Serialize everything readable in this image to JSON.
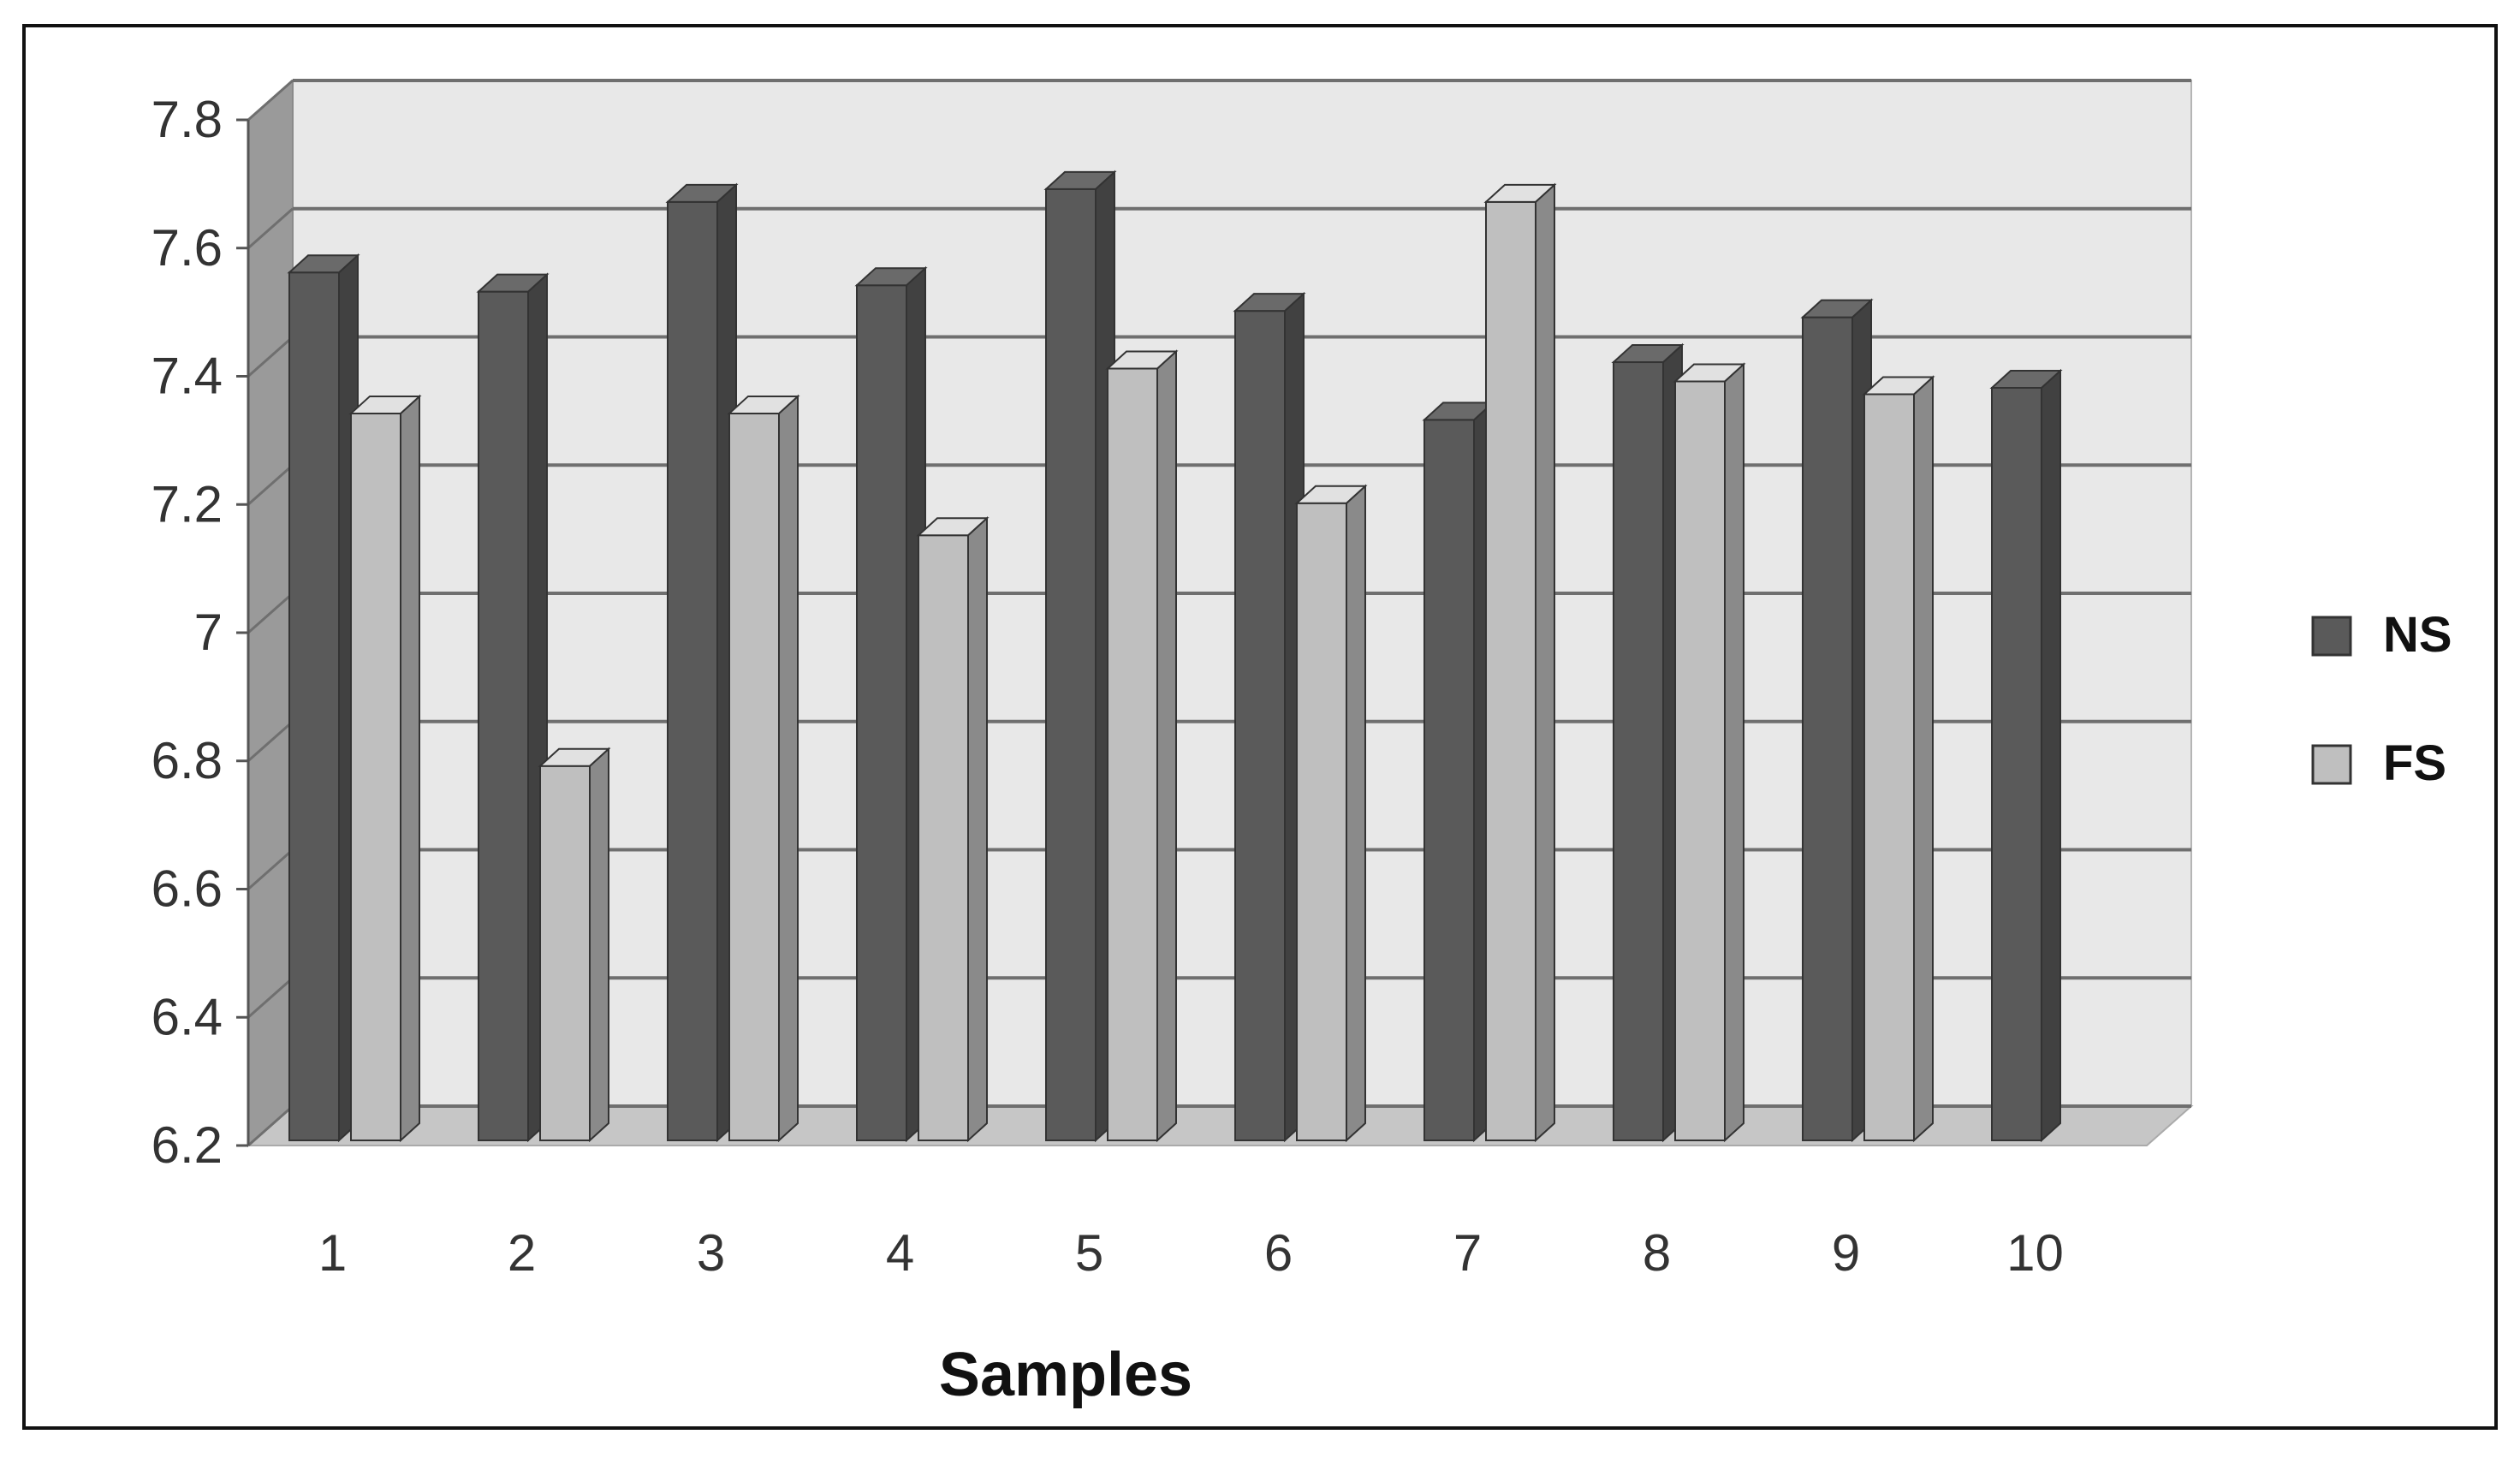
{
  "chart_data": {
    "type": "bar",
    "style": "3d-clustered-column",
    "categories": [
      "1",
      "2",
      "3",
      "4",
      "5",
      "6",
      "7",
      "8",
      "9",
      "10"
    ],
    "series": [
      {
        "name": "NS",
        "color": "#5a5a5a",
        "values": [
          7.57,
          7.54,
          7.68,
          7.55,
          7.7,
          7.51,
          7.34,
          7.43,
          7.5,
          7.39
        ]
      },
      {
        "name": "FS",
        "color": "#bfbfbf",
        "values": [
          7.35,
          6.8,
          7.35,
          7.16,
          7.42,
          7.21,
          7.68,
          7.4,
          7.38,
          null
        ]
      }
    ],
    "title": "",
    "xlabel": "Samples",
    "ylabel": "",
    "ylim": [
      6.2,
      7.8
    ],
    "yticks": [
      "6.2",
      "6.4",
      "6.6",
      "6.8",
      "7",
      "7.2",
      "7.4",
      "7.6",
      "7.8"
    ],
    "grid": true,
    "legend_position": "right",
    "wall_color": "#e8e8e8",
    "floor_color": "#c6c6c6"
  }
}
